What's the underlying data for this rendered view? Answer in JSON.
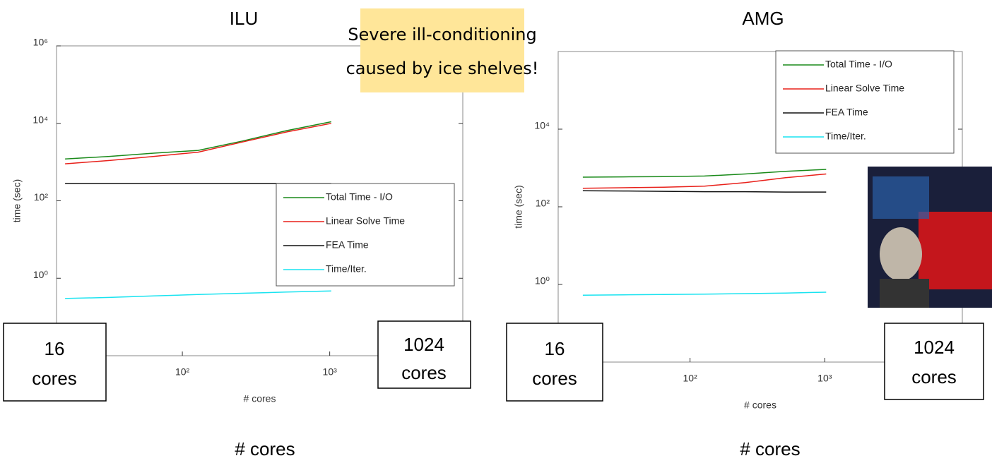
{
  "chart_data": [
    {
      "type": "line",
      "title": "ILU",
      "xlabel": "# cores",
      "ylabel": "time (sec)",
      "x": [
        16,
        32,
        64,
        128,
        256,
        512,
        1024
      ],
      "log_x": true,
      "log_y": true,
      "xlim": [
        14,
        8000
      ],
      "ylim": [
        0.01,
        1000000
      ],
      "xticks": [
        {
          "value": 100,
          "label": "10²"
        },
        {
          "value": 1000,
          "label": "10³"
        }
      ],
      "yticks": [
        {
          "value": 1,
          "label": "10⁰"
        },
        {
          "value": 100,
          "label": "10²"
        },
        {
          "value": 10000,
          "label": "10⁴"
        },
        {
          "value": 1000000,
          "label": "10⁶"
        }
      ],
      "legend": "lower right",
      "series": [
        {
          "name": "Total Time - I/O",
          "color": "#1a8a1a",
          "values": [
            1200,
            1400,
            1700,
            2000,
            3500,
            6500,
            11000
          ]
        },
        {
          "name": "Linear Solve Time",
          "color": "#e8201a",
          "values": [
            900,
            1100,
            1400,
            1800,
            3300,
            6000,
            10000
          ]
        },
        {
          "name": "FEA Time",
          "color": "#111111",
          "values": [
            280,
            280,
            280,
            280,
            280,
            280,
            280
          ]
        },
        {
          "name": "Time/Iter.",
          "color": "#19e3f0",
          "values": [
            0.3,
            0.32,
            0.35,
            0.38,
            0.41,
            0.44,
            0.47
          ]
        }
      ]
    },
    {
      "type": "line",
      "title": "AMG",
      "xlabel": "# cores",
      "ylabel": "time (sec)",
      "x": [
        16,
        32,
        64,
        128,
        256,
        512,
        1024
      ],
      "log_x": true,
      "log_y": true,
      "xlim": [
        10.5,
        10500
      ],
      "ylim": [
        0.01,
        1000000
      ],
      "xticks": [
        {
          "value": 100,
          "label": "10²"
        },
        {
          "value": 1000,
          "label": "10³"
        }
      ],
      "yticks": [
        {
          "value": 1,
          "label": "10⁰"
        },
        {
          "value": 100,
          "label": "10²"
        },
        {
          "value": 10000,
          "label": "10⁴"
        }
      ],
      "legend": "upper right",
      "series": [
        {
          "name": "Total Time - I/O",
          "color": "#1a8a1a",
          "values": [
            580,
            590,
            600,
            620,
            700,
            820,
            920
          ]
        },
        {
          "name": "Linear Solve Time",
          "color": "#e8201a",
          "values": [
            300,
            310,
            320,
            340,
            420,
            560,
            700
          ]
        },
        {
          "name": "FEA Time",
          "color": "#111111",
          "values": [
            260,
            255,
            250,
            245,
            245,
            240,
            240
          ]
        },
        {
          "name": "Time/Iter.",
          "color": "#19e3f0",
          "values": [
            0.53,
            0.54,
            0.55,
            0.56,
            0.58,
            0.6,
            0.63
          ]
        }
      ]
    }
  ],
  "callout": [
    "Severe ill-conditioning",
    "caused by ice shelves!"
  ],
  "boxes": [
    [
      "16",
      "cores"
    ],
    [
      "1024",
      "cores"
    ],
    [
      "16",
      "cores"
    ],
    [
      "1024",
      "cores"
    ]
  ],
  "footer_labels": [
    "# cores",
    "# cores"
  ]
}
